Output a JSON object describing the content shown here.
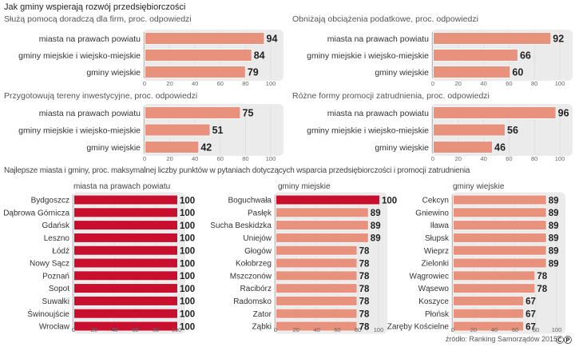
{
  "header": {
    "title": "Jak gminy wspierają rozwój przedsiębiorczości",
    "section_title": "Najlepsze miasta i gminy, proc. maksymalnej liczby punktów w pytaniach dotyczących wsparcia przedsiębiorczości i promocji zatrudnienia",
    "source": "źródło: Ranking Samorządów 2015",
    "license_icon": "cc-by-icon",
    "license_glyph": "ⒸⓅ"
  },
  "colors": {
    "bar_salmon": "#e8917c",
    "bar_red": "#c8102e",
    "panel_bg": "#ebebeb",
    "value_text": "#222222"
  },
  "chart_data": [
    {
      "type": "bar",
      "orientation": "horizontal",
      "title": "Służą pomocą doradczą dla firm, proc. odpowiedzi",
      "categories": [
        "miasta na prawach powiatu",
        "gminy miejskie i wiejsko-miejskie",
        "gminy wiejskie"
      ],
      "values": [
        94,
        84,
        79
      ],
      "xlim": [
        0,
        100
      ],
      "xticks": [
        0,
        20,
        40,
        60,
        80,
        100
      ]
    },
    {
      "type": "bar",
      "orientation": "horizontal",
      "title": "Obniżają obciążenia podatkowe, proc. odpowiedzi",
      "categories": [
        "miasta na prawach powiatu",
        "gminy miejskie i wiejsko-miejskie",
        "gminy wiejskie"
      ],
      "values": [
        92,
        66,
        60
      ],
      "xlim": [
        0,
        100
      ],
      "xticks": [
        0,
        20,
        40,
        60,
        80,
        100
      ]
    },
    {
      "type": "bar",
      "orientation": "horizontal",
      "title": "Przygotowują tereny inwestycyjne, proc. odpowiedzi",
      "categories": [
        "miasta na prawach powiatu",
        "gminy miejskie i wiejsko-miejskie",
        "gminy wiejskie"
      ],
      "values": [
        75,
        51,
        42
      ],
      "xlim": [
        0,
        100
      ],
      "xticks": [
        0,
        20,
        40,
        60,
        80,
        100
      ]
    },
    {
      "type": "bar",
      "orientation": "horizontal",
      "title": "Różne formy promocji zatrudnienia, proc. odpowiedzi",
      "categories": [
        "miasta na prawach powiatu",
        "gminy miejskie i wiejsko-miejskie",
        "gminy wiejskie"
      ],
      "values": [
        96,
        56,
        46
      ],
      "xlim": [
        0,
        100
      ],
      "xticks": [
        0,
        20,
        40,
        60,
        80,
        100
      ]
    },
    {
      "type": "bar",
      "orientation": "horizontal",
      "title": "miasta na prawach powiatu",
      "categories": [
        "Bydgoszcz",
        "Dąbrowa Górnicza",
        "Gdańsk",
        "Leszno",
        "Łódź",
        "Nowy Sącz",
        "Poznań",
        "Sopot",
        "Suwałki",
        "Świnoujście",
        "Wrocław"
      ],
      "values": [
        100,
        100,
        100,
        100,
        100,
        100,
        100,
        100,
        100,
        100,
        100
      ],
      "xlim": [
        0,
        100
      ],
      "xticks": [
        0,
        20,
        40,
        60,
        80,
        100
      ]
    },
    {
      "type": "bar",
      "orientation": "horizontal",
      "title": "gminy miejskie",
      "categories": [
        "Boguchwała",
        "Pasłęk",
        "Sucha Beskidzka",
        "Uniejów",
        "Głogów",
        "Kołobrzeg",
        "Mszczonów",
        "Racibórz",
        "Radomsko",
        "Zator",
        "Ząbki"
      ],
      "values": [
        100,
        89,
        89,
        89,
        78,
        78,
        78,
        78,
        78,
        78,
        78
      ],
      "xlim": [
        0,
        100
      ],
      "xticks": [
        0,
        20,
        40,
        60,
        80,
        100
      ]
    },
    {
      "type": "bar",
      "orientation": "horizontal",
      "title": "gminy wiejskie",
      "categories": [
        "Cekcyn",
        "Gniewino",
        "Iława",
        "Słupsk",
        "Wieprz",
        "Zielonki",
        "Wągrowiec",
        "Wąsewo",
        "Koszyce",
        "Płońsk",
        "Zaręby Kościelne"
      ],
      "values": [
        89,
        89,
        89,
        89,
        89,
        89,
        78,
        78,
        67,
        67,
        67
      ],
      "xlim": [
        0,
        100
      ],
      "xticks": [
        0,
        20,
        40,
        60,
        80,
        100
      ]
    }
  ]
}
